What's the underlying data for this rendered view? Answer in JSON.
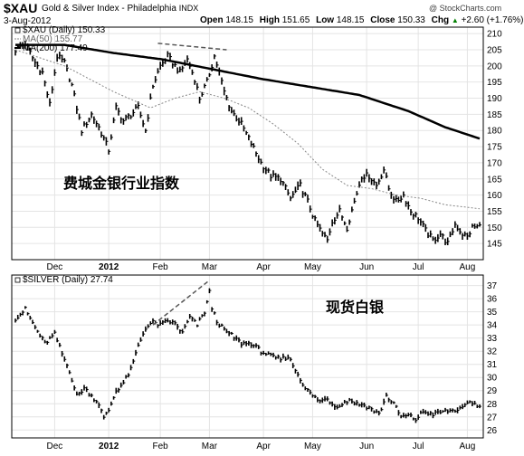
{
  "header": {
    "symbol": "$XAU",
    "name": "Gold & Silver Index - Philadelphia",
    "exchange": "INDX",
    "date": "3-Aug-2012",
    "open_label": "Open",
    "open": "148.15",
    "high_label": "High",
    "high": "151.65",
    "low_label": "Low",
    "low": "148.15",
    "close_label": "Close",
    "close": "150.33",
    "chg_label": "Chg",
    "chg": "+2.60 (+1.76%)",
    "chg_arrow": "▲",
    "watermark": "@ StockCharts.com"
  },
  "colors": {
    "price": "#000000",
    "ma50": "#888888",
    "ma200": "#000000",
    "trend": "#555555",
    "grid": "#e4e4e4",
    "frame": "#000000",
    "up_arrow": "#008000"
  },
  "chart_data": [
    {
      "type": "line",
      "panel": "top",
      "legend": [
        "$XAU (Daily) 150.33",
        "MA(50) 155.77",
        "MA(200) 177.49"
      ],
      "annotation": "费城金银行业指数",
      "ylim": [
        140,
        212
      ],
      "y_ticks": [
        145,
        150,
        155,
        160,
        165,
        170,
        175,
        180,
        185,
        190,
        195,
        200,
        205,
        210
      ],
      "x_labels": [
        "Dec",
        "2012",
        "Feb",
        "Mar",
        "Apr",
        "May",
        "Jun",
        "Jul",
        "Aug"
      ],
      "x_label_index": [
        16,
        38,
        59,
        79,
        101,
        121,
        143,
        164,
        184
      ],
      "n_days": 190,
      "series": [
        {
          "name": "$XAU (Daily) 150.33",
          "key": [
            [
              0,
              205
            ],
            [
              4,
              207
            ],
            [
              8,
              201
            ],
            [
              11,
              198
            ],
            [
              14,
              188
            ],
            [
              17,
              203
            ],
            [
              20,
              201
            ],
            [
              23,
              194
            ],
            [
              27,
              180
            ],
            [
              31,
              185
            ],
            [
              34,
              181
            ],
            [
              38,
              174
            ],
            [
              41,
              187
            ],
            [
              44,
              183
            ],
            [
              47,
              185
            ],
            [
              50,
              187
            ],
            [
              53,
              180
            ],
            [
              56,
              194
            ],
            [
              59,
              200
            ],
            [
              62,
              203
            ],
            [
              65,
              200
            ],
            [
              67,
              198
            ],
            [
              70,
              202
            ],
            [
              73,
              196
            ],
            [
              75,
              190
            ],
            [
              78,
              195
            ],
            [
              81,
              203
            ],
            [
              83,
              198
            ],
            [
              85,
              192
            ],
            [
              88,
              186
            ],
            [
              92,
              182
            ],
            [
              96,
              176
            ],
            [
              100,
              170
            ],
            [
              104,
              166
            ],
            [
              108,
              165
            ],
            [
              112,
              159
            ],
            [
              116,
              163
            ],
            [
              119,
              158
            ],
            [
              122,
              152
            ],
            [
              125,
              148
            ],
            [
              127,
              146
            ],
            [
              129,
              152
            ],
            [
              132,
              155
            ],
            [
              135,
              150
            ],
            [
              138,
              158
            ],
            [
              141,
              166
            ],
            [
              144,
              166
            ],
            [
              147,
              163
            ],
            [
              150,
              168
            ],
            [
              152,
              162
            ],
            [
              155,
              158
            ],
            [
              158,
              160
            ],
            [
              161,
              155
            ],
            [
              164,
              153
            ],
            [
              167,
              149
            ],
            [
              170,
              146
            ],
            [
              173,
              148
            ],
            [
              176,
              145
            ],
            [
              179,
              151
            ],
            [
              182,
              148
            ],
            [
              184,
              147
            ],
            [
              186,
              150
            ],
            [
              189,
              150.33
            ]
          ]
        },
        {
          "name": "MA(50) 155.77",
          "key": [
            [
              0,
              205
            ],
            [
              20,
              200
            ],
            [
              40,
              192
            ],
            [
              55,
              187
            ],
            [
              65,
              190
            ],
            [
              75,
              192
            ],
            [
              85,
              190
            ],
            [
              95,
              187
            ],
            [
              105,
              182
            ],
            [
              115,
              176
            ],
            [
              125,
              168
            ],
            [
              135,
              163
            ],
            [
              145,
              162
            ],
            [
              155,
              160
            ],
            [
              165,
              159
            ],
            [
              175,
              157
            ],
            [
              189,
              155.77
            ]
          ]
        },
        {
          "name": "MA(200) 177.49",
          "key": [
            [
              0,
              206.5
            ],
            [
              20,
              206.5
            ],
            [
              40,
              204
            ],
            [
              60,
              202
            ],
            [
              80,
              199
            ],
            [
              100,
              196
            ],
            [
              120,
              193.5
            ],
            [
              140,
              191
            ],
            [
              160,
              186
            ],
            [
              175,
              181
            ],
            [
              189,
              177.49
            ]
          ]
        }
      ],
      "trendline": {
        "from": [
          58,
          207
        ],
        "to": [
          86,
          205
        ]
      }
    },
    {
      "type": "line",
      "panel": "bottom",
      "legend": [
        "$SILVER (Daily) 27.74"
      ],
      "annotation": "现货白银",
      "ylim": [
        25.4,
        37.8
      ],
      "y_ticks": [
        26,
        27,
        28,
        29,
        30,
        31,
        32,
        33,
        34,
        35,
        36,
        37
      ],
      "x_labels": [
        "Dec",
        "2012",
        "Feb",
        "Mar",
        "Apr",
        "May",
        "Jun",
        "Jul",
        "Aug"
      ],
      "x_label_index": [
        16,
        38,
        59,
        79,
        101,
        121,
        143,
        164,
        184
      ],
      "n_days": 190,
      "series": [
        {
          "name": "$SILVER (Daily) 27.74",
          "key": [
            [
              0,
              34.5
            ],
            [
              4,
              35.2
            ],
            [
              8,
              33.8
            ],
            [
              12,
              32.6
            ],
            [
              16,
              33.3
            ],
            [
              19,
              31.8
            ],
            [
              22,
              30.5
            ],
            [
              25,
              28.6
            ],
            [
              28,
              29.2
            ],
            [
              31,
              28.6
            ],
            [
              34,
              28.0
            ],
            [
              36,
              26.9
            ],
            [
              38,
              27.5
            ],
            [
              41,
              29.0
            ],
            [
              44,
              29.6
            ],
            [
              47,
              30.6
            ],
            [
              50,
              32.4
            ],
            [
              53,
              33.8
            ],
            [
              56,
              34.2
            ],
            [
              59,
              34.0
            ],
            [
              62,
              34.3
            ],
            [
              65,
              34.1
            ],
            [
              68,
              33.4
            ],
            [
              71,
              34.6
            ],
            [
              74,
              34.0
            ],
            [
              77,
              35.0
            ],
            [
              79,
              36.5
            ],
            [
              80,
              35.3
            ],
            [
              82,
              34.3
            ],
            [
              85,
              33.6
            ],
            [
              88,
              33.2
            ],
            [
              92,
              32.6
            ],
            [
              96,
              32.6
            ],
            [
              100,
              32.0
            ],
            [
              104,
              31.6
            ],
            [
              108,
              31.4
            ],
            [
              111,
              31.6
            ],
            [
              114,
              30.6
            ],
            [
              118,
              29.2
            ],
            [
              121,
              28.6
            ],
            [
              124,
              28.2
            ],
            [
              127,
              28.4
            ],
            [
              130,
              27.8
            ],
            [
              133,
              28.0
            ],
            [
              136,
              28.3
            ],
            [
              139,
              28.0
            ],
            [
              142,
              27.9
            ],
            [
              145,
              27.6
            ],
            [
              148,
              27.2
            ],
            [
              151,
              28.6
            ],
            [
              154,
              28.0
            ],
            [
              157,
              27.0
            ],
            [
              160,
              27.1
            ],
            [
              163,
              26.8
            ],
            [
              166,
              27.4
            ],
            [
              170,
              27.2
            ],
            [
              174,
              27.4
            ],
            [
              178,
              27.5
            ],
            [
              182,
              27.6
            ],
            [
              185,
              28.2
            ],
            [
              189,
              27.74
            ]
          ]
        }
      ],
      "trendline": {
        "from": [
          56,
          34.0
        ],
        "to": [
          79,
          37.4
        ]
      }
    }
  ]
}
